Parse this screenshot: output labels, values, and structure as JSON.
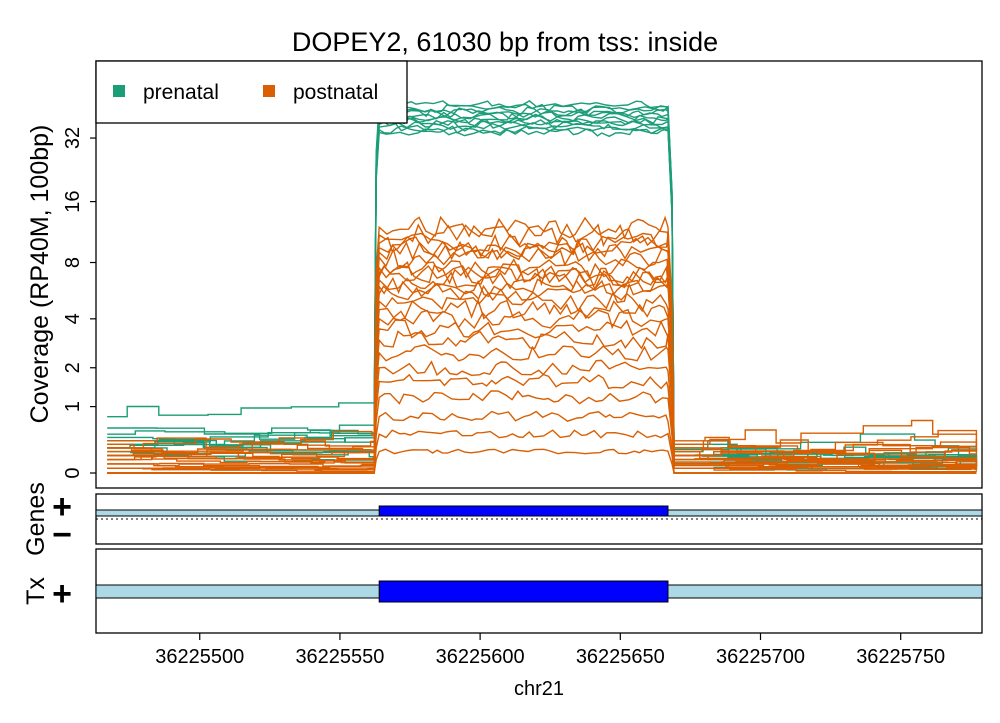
{
  "chart_data": {
    "type": "line",
    "title": "DOPEY2, 61030 bp from tss: inside",
    "ylabel": "Coverage (RP40M, 100bp)",
    "xlabel": "chr21",
    "y_scale": "log2(x+1)",
    "y_ticks": [
      0,
      1,
      2,
      4,
      8,
      16,
      32
    ],
    "x_ticks": [
      36225500,
      36225550,
      36225600,
      36225650,
      36225700,
      36225750
    ],
    "xlim": [
      36225463,
      36225779
    ],
    "exon": {
      "start": 36225564,
      "end": 36225667
    },
    "legend": {
      "position": "top-left",
      "entries": [
        {
          "label": "prenatal",
          "color": "#1B9E77"
        },
        {
          "label": "postnatal",
          "color": "#D95F02"
        }
      ]
    },
    "series": [
      {
        "group": "prenatal",
        "color": "#1B9E77",
        "left": 0.8,
        "exon": 46,
        "right": 0.2
      },
      {
        "group": "prenatal",
        "color": "#1B9E77",
        "left": 0.6,
        "exon": 42,
        "right": 0.35
      },
      {
        "group": "prenatal",
        "color": "#1B9E77",
        "left": 0.5,
        "exon": 44,
        "right": 0.3
      },
      {
        "group": "prenatal",
        "color": "#1B9E77",
        "left": 0.4,
        "exon": 40,
        "right": 0.25
      },
      {
        "group": "prenatal",
        "color": "#1B9E77",
        "left": 0.45,
        "exon": 38,
        "right": 0.15
      },
      {
        "group": "prenatal",
        "color": "#1B9E77",
        "left": 0.3,
        "exon": 36,
        "right": 0.1
      },
      {
        "group": "prenatal",
        "color": "#1B9E77",
        "left": 0.35,
        "exon": 41,
        "right": 0.2
      },
      {
        "group": "prenatal",
        "color": "#1B9E77",
        "left": 0.25,
        "exon": 35,
        "right": 0.12
      },
      {
        "group": "prenatal",
        "color": "#1B9E77",
        "left": 0.3,
        "exon": 39,
        "right": 0.05
      },
      {
        "group": "prenatal",
        "color": "#1B9E77",
        "left": 0.2,
        "exon": 37,
        "right": 0.1
      },
      {
        "group": "prenatal",
        "color": "#1B9E77",
        "left": 0.4,
        "exon": 43,
        "right": 0.28
      },
      {
        "group": "prenatal",
        "color": "#1B9E77",
        "left": 0.3,
        "exon": 34,
        "right": 0.2
      },
      {
        "group": "postnatal",
        "color": "#D95F02",
        "left": 0.4,
        "exon": 11,
        "right": 0.4
      },
      {
        "group": "postnatal",
        "color": "#D95F02",
        "left": 0.35,
        "exon": 10,
        "right": 0.3
      },
      {
        "group": "postnatal",
        "color": "#D95F02",
        "left": 0.3,
        "exon": 9,
        "right": 0.25
      },
      {
        "group": "postnatal",
        "color": "#D95F02",
        "left": 0.25,
        "exon": 8.5,
        "right": 0.2
      },
      {
        "group": "postnatal",
        "color": "#D95F02",
        "left": 0.3,
        "exon": 7.5,
        "right": 0.3
      },
      {
        "group": "postnatal",
        "color": "#D95F02",
        "left": 0.2,
        "exon": 7,
        "right": 0.15
      },
      {
        "group": "postnatal",
        "color": "#D95F02",
        "left": 0.15,
        "exon": 6.5,
        "right": 0.2
      },
      {
        "group": "postnatal",
        "color": "#D95F02",
        "left": 0.2,
        "exon": 6,
        "right": 0.1
      },
      {
        "group": "postnatal",
        "color": "#D95F02",
        "left": 0.1,
        "exon": 5.5,
        "right": 0.15
      },
      {
        "group": "postnatal",
        "color": "#D95F02",
        "left": 0.15,
        "exon": 5,
        "right": 0.25
      },
      {
        "group": "postnatal",
        "color": "#D95F02",
        "left": 0.1,
        "exon": 4.5,
        "right": 0.1
      },
      {
        "group": "postnatal",
        "color": "#D95F02",
        "left": 0.05,
        "exon": 4,
        "right": 0.05
      },
      {
        "group": "postnatal",
        "color": "#D95F02",
        "left": 0.1,
        "exon": 3.5,
        "right": 0.1
      },
      {
        "group": "postnatal",
        "color": "#D95F02",
        "left": 0.05,
        "exon": 3,
        "right": 0.08
      },
      {
        "group": "postnatal",
        "color": "#D95F02",
        "left": 0.0,
        "exon": 2.5,
        "right": 0.05
      },
      {
        "group": "postnatal",
        "color": "#D95F02",
        "left": 0.05,
        "exon": 2,
        "right": 0.1
      },
      {
        "group": "postnatal",
        "color": "#D95F02",
        "left": 0.0,
        "exon": 1.6,
        "right": 0.0
      },
      {
        "group": "postnatal",
        "color": "#D95F02",
        "left": 0.05,
        "exon": 1.2,
        "right": 0.05
      },
      {
        "group": "postnatal",
        "color": "#D95F02",
        "left": 0.0,
        "exon": 0.8,
        "right": 0.0
      },
      {
        "group": "postnatal",
        "color": "#D95F02",
        "left": 0.0,
        "exon": 0.5,
        "right": 0.0
      },
      {
        "group": "postnatal",
        "color": "#D95F02",
        "left": 0.0,
        "exon": 0.25,
        "right": 0.0
      },
      {
        "group": "postnatal",
        "color": "#D95F02",
        "left": 0.2,
        "exon": 12,
        "right": 0.2
      },
      {
        "group": "postnatal",
        "color": "#D95F02",
        "left": 0.3,
        "exon": 9.5,
        "right": 0.35
      },
      {
        "group": "postnatal",
        "color": "#D95F02",
        "left": 0.15,
        "exon": 6.8,
        "right": 0.12
      }
    ]
  },
  "tracks": {
    "genes_label": "Genes",
    "tx_label": "Tx",
    "plus": "+",
    "minus": "−",
    "gene_color": "#ADD8E6",
    "exon_color": "#0000FF"
  }
}
